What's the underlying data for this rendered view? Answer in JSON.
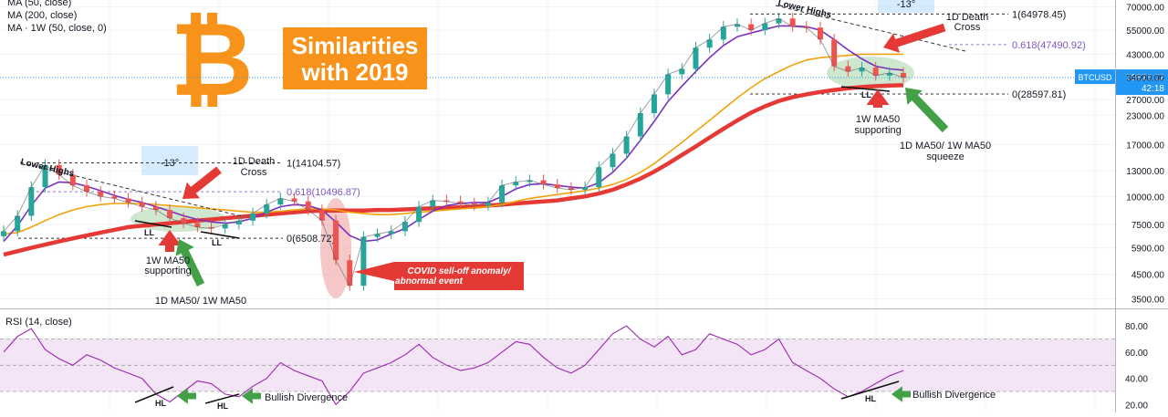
{
  "legend": {
    "ma50": "MA (50, close)",
    "ma200": "MA (200, close)",
    "ma1w": "MA · 1W (50, close, 0)"
  },
  "title_badge": {
    "line1": "Similarities",
    "line2": "with 2019"
  },
  "colors": {
    "candle_up": "#26a69a",
    "candle_down": "#ef5350",
    "ma50": "#7b2fbe",
    "ma200": "#f0a30a",
    "ma1w": "#e53935",
    "rsi": "#9c27b0",
    "rsi_band": "#f3e5f5",
    "bitcoin": "#f7931a",
    "price_tag": "#2196f3",
    "arrow_red": "#e53935",
    "arrow_green": "#43a047"
  },
  "chart_data": {
    "type": "line",
    "title": "Similarities with 2019",
    "price_axis": {
      "scale": "log",
      "ticks": [
        70000,
        55000,
        43000,
        34000,
        27000,
        23000,
        17000,
        13000,
        10000,
        7500,
        5900,
        4500,
        3500
      ],
      "tick_labels": [
        "70000.00",
        "55000.00",
        "43000.00",
        "34000.00",
        "27000.00",
        "23000.00",
        "17000.00",
        "13000.00",
        "10000.00",
        "7500.00",
        "5900.00",
        "4500.00",
        "3500.00"
      ]
    },
    "price_tag": {
      "symbol": "BTCUSD",
      "value": "33826.02",
      "countdown": "42:18"
    },
    "fib_levels": [
      {
        "label": "1(14104.57)",
        "value": 14104.57
      },
      {
        "label": "0.618(10496.87)",
        "value": 10496.87
      },
      {
        "label": "0(6508.72)",
        "value": 6508.72
      },
      {
        "label": "1(64978.45)",
        "value": 64978.45
      },
      {
        "label": "0.618(47490.92)",
        "value": 47490.92
      },
      {
        "label": "0(28597.81)",
        "value": 28597.81
      }
    ],
    "series": [
      {
        "name": "BTCUSD",
        "kind": "price",
        "values": [
          7000,
          8200,
          11000,
          13800,
          12500,
          11200,
          10500,
          10000,
          9800,
          9400,
          9000,
          8700,
          8000,
          7600,
          7300,
          7200,
          7500,
          7800,
          8400,
          9200,
          9800,
          9500,
          8700,
          7800,
          5200,
          4000,
          6600,
          6800,
          7000,
          7700,
          9000,
          9600,
          9500,
          9300,
          9100,
          9400,
          11200,
          11600,
          11800,
          11300,
          10900,
          10700,
          11000,
          13500,
          15500,
          18500,
          23500,
          28500,
          35000,
          37000,
          46000,
          50000,
          57000,
          58500,
          55000,
          59000,
          62000,
          57000,
          56500,
          50000,
          38000,
          36000,
          37500,
          34500,
          35500,
          33826
        ]
      },
      {
        "name": "MA (50, close)",
        "kind": "ma50",
        "values": [
          6300,
          7400,
          9100,
          10900,
          11600,
          11500,
          11100,
          10600,
          10100,
          9700,
          9400,
          9000,
          8600,
          8200,
          7900,
          7700,
          7600,
          7700,
          8000,
          8500,
          9000,
          9200,
          9100,
          8700,
          7700,
          6700,
          6300,
          6400,
          6800,
          7200,
          7900,
          8600,
          9100,
          9300,
          9400,
          9400,
          10000,
          10800,
          11300,
          11400,
          11200,
          11000,
          10900,
          11500,
          12800,
          14800,
          17800,
          21600,
          26500,
          31000,
          36000,
          41500,
          47000,
          51500,
          53500,
          55500,
          57500,
          57500,
          57000,
          55000,
          50000,
          45000,
          41000,
          38000,
          37000,
          36500
        ]
      },
      {
        "name": "MA (200, close)",
        "kind": "ma200",
        "values": [
          6800,
          6900,
          7300,
          7800,
          8300,
          8700,
          9000,
          9200,
          9300,
          9300,
          9300,
          9200,
          9100,
          9000,
          8900,
          8800,
          8700,
          8600,
          8500,
          8500,
          8600,
          8700,
          8800,
          8800,
          8700,
          8500,
          8400,
          8300,
          8300,
          8400,
          8500,
          8600,
          8700,
          8800,
          8900,
          9000,
          9200,
          9500,
          9800,
          10000,
          10200,
          10400,
          10600,
          10900,
          11300,
          11900,
          12800,
          14000,
          15600,
          17400,
          19500,
          21800,
          24500,
          27500,
          30500,
          33500,
          36000,
          38500,
          40500,
          41500,
          42000,
          42500,
          43000,
          43000,
          43000,
          43000
        ]
      },
      {
        "name": "MA · 1W (50, close, 0)",
        "kind": "ma1w",
        "values": [
          5500,
          5700,
          5900,
          6100,
          6300,
          6500,
          6700,
          6900,
          7100,
          7300,
          7400,
          7500,
          7600,
          7700,
          7800,
          7900,
          8000,
          8100,
          8200,
          8300,
          8400,
          8500,
          8600,
          8650,
          8650,
          8650,
          8650,
          8700,
          8700,
          8750,
          8800,
          8850,
          8900,
          8950,
          9000,
          9100,
          9200,
          9300,
          9400,
          9500,
          9600,
          9800,
          10000,
          10300,
          10700,
          11300,
          12000,
          12900,
          14000,
          15300,
          16700,
          18300,
          20000,
          21800,
          23600,
          25200,
          26600,
          27700,
          28500,
          29200,
          29800,
          30300,
          30700,
          31000,
          31200,
          31300
        ]
      }
    ],
    "rsi": {
      "label": "RSI (14, close)",
      "ticks": [
        80,
        60,
        40,
        20
      ],
      "tick_labels": [
        "80.00",
        "60.00",
        "40.00",
        "20.00"
      ],
      "band": [
        30,
        70
      ],
      "values": [
        60,
        72,
        78,
        62,
        55,
        50,
        58,
        54,
        48,
        44,
        40,
        28,
        22,
        30,
        38,
        36,
        28,
        26,
        34,
        40,
        52,
        46,
        42,
        38,
        20,
        30,
        44,
        48,
        52,
        58,
        66,
        56,
        50,
        46,
        48,
        52,
        60,
        68,
        66,
        56,
        48,
        44,
        50,
        62,
        74,
        80,
        70,
        64,
        72,
        58,
        62,
        74,
        70,
        66,
        58,
        62,
        70,
        52,
        46,
        40,
        32,
        26,
        30,
        36,
        42,
        46
      ]
    },
    "annotations": [
      {
        "text": "Lower Highs",
        "where": "2019 top"
      },
      {
        "text": "1D Death Cross",
        "where": "2019"
      },
      {
        "text": "LL",
        "where": "2019 low 1"
      },
      {
        "text": "LL",
        "where": "2019 low 2"
      },
      {
        "text": "1W MA50 supporting",
        "where": "2019"
      },
      {
        "text": "1D MA50/ 1W MA50",
        "where": "2019"
      },
      {
        "text": "COVID sell-off anomaly/ abnormal event",
        "where": "March 2020"
      },
      {
        "text": "Lower Highs",
        "where": "2021 top"
      },
      {
        "text": "1D Death Cross",
        "where": "2021"
      },
      {
        "text": "LL",
        "where": "2021 low"
      },
      {
        "text": "1W MA50 supporting",
        "where": "2021"
      },
      {
        "text": "1D MA50/ 1W MA50 squeeze",
        "where": "2021"
      },
      {
        "text": "HL",
        "where": "RSI 2019 a"
      },
      {
        "text": "HL",
        "where": "RSI 2019 b"
      },
      {
        "text": "Bullish Divergence",
        "where": "RSI 2019"
      },
      {
        "text": "HL",
        "where": "RSI 2021"
      },
      {
        "text": "Bullish Divergence",
        "where": "RSI 2021"
      },
      {
        "text": "-13°",
        "where": "angle 2019"
      },
      {
        "text": "-13°",
        "where": "angle 2021"
      }
    ]
  }
}
